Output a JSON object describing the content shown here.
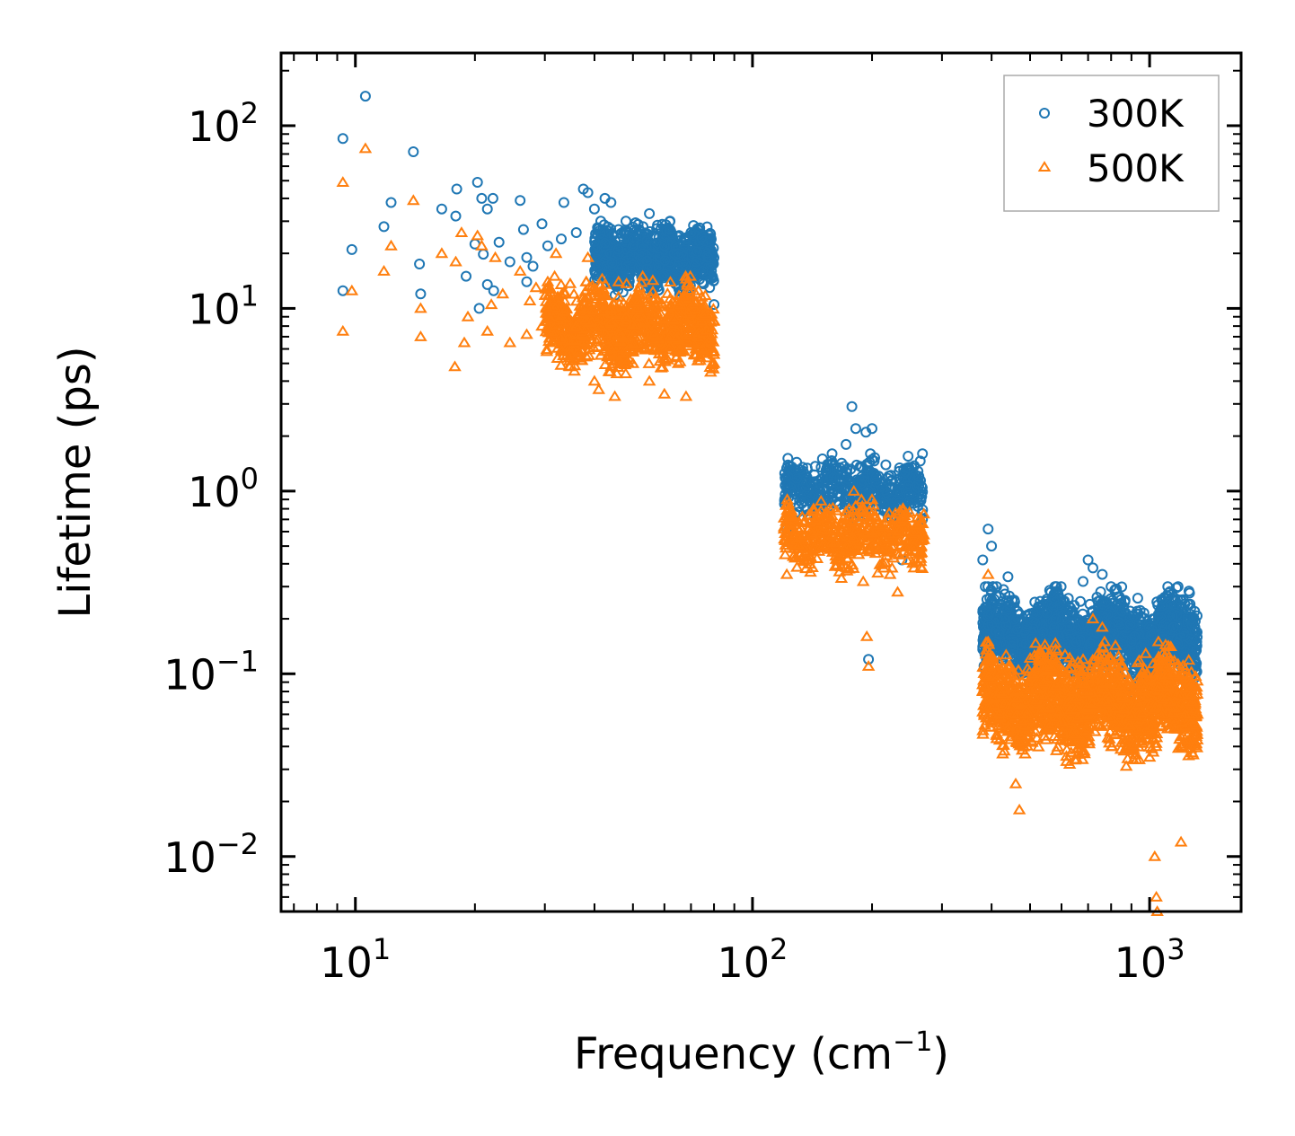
{
  "chart_data": {
    "type": "scatter",
    "xscale": "log",
    "yscale": "log",
    "xlim": [
      6.5,
      1700
    ],
    "ylim": [
      0.005,
      250
    ],
    "xlabel": {
      "base": "Frequency (cm",
      "sup": "−1",
      "tail": ")"
    },
    "ylabel": "Lifetime (ps)",
    "x_ticks": [
      {
        "value": 10,
        "base": "10",
        "exp": "1"
      },
      {
        "value": 100,
        "base": "10",
        "exp": "2"
      },
      {
        "value": 1000,
        "base": "10",
        "exp": "3"
      }
    ],
    "y_ticks": [
      {
        "value": 0.01,
        "base": "10",
        "exp": "−2"
      },
      {
        "value": 0.1,
        "base": "10",
        "exp": "−1"
      },
      {
        "value": 1,
        "base": "10",
        "exp": "0"
      },
      {
        "value": 10,
        "base": "10",
        "exp": "1"
      },
      {
        "value": 100,
        "base": "10",
        "exp": "2"
      }
    ],
    "legend_position": "top-right",
    "series": [
      {
        "name": "300K",
        "marker": "circle",
        "color": "#1f77b4",
        "points": [
          [
            9.3,
            85
          ],
          [
            10.6,
            145
          ],
          [
            14.0,
            72
          ],
          [
            9.3,
            12.5
          ],
          [
            9.8,
            21
          ],
          [
            12.3,
            38
          ],
          [
            11.8,
            28
          ],
          [
            14.5,
            17.5
          ],
          [
            14.6,
            12
          ],
          [
            16.5,
            35
          ],
          [
            18.0,
            45
          ],
          [
            17.9,
            32
          ],
          [
            19.0,
            15
          ],
          [
            20.3,
            49
          ],
          [
            20.8,
            40
          ],
          [
            21.5,
            35
          ],
          [
            22.2,
            40
          ],
          [
            20.0,
            22.5
          ],
          [
            21.0,
            19.8
          ],
          [
            23.0,
            23
          ],
          [
            21.5,
            13.5
          ],
          [
            22.3,
            12.5
          ],
          [
            20.5,
            10
          ],
          [
            24.5,
            18
          ],
          [
            26.0,
            39
          ],
          [
            26.5,
            27
          ],
          [
            27.0,
            19
          ],
          [
            27.0,
            14
          ],
          [
            28.0,
            17
          ],
          [
            29.5,
            29
          ],
          [
            30.5,
            22
          ],
          [
            33.0,
            24
          ],
          [
            33.5,
            38
          ],
          [
            36.0,
            26
          ],
          [
            37.5,
            45
          ],
          [
            38.5,
            43
          ],
          [
            40.0,
            35
          ],
          [
            41.5,
            30
          ],
          [
            42.5,
            40
          ],
          [
            44.0,
            38
          ],
          [
            46.0,
            27
          ],
          [
            48.0,
            30
          ],
          [
            50.0,
            22
          ],
          [
            53.0,
            28
          ],
          [
            55.0,
            33
          ],
          [
            57.0,
            25
          ],
          [
            60.0,
            22
          ],
          [
            62.0,
            27
          ],
          [
            65.0,
            20
          ],
          [
            68.0,
            24
          ],
          [
            70.0,
            26
          ],
          [
            72.0,
            18
          ],
          [
            75.0,
            16
          ],
          [
            78.0,
            13
          ],
          [
            80.0,
            10.5
          ],
          [
            122.0,
            0.62
          ],
          [
            128.0,
            0.75
          ],
          [
            135.0,
            0.88
          ],
          [
            142.0,
            1.05
          ],
          [
            150.0,
            1.5
          ],
          [
            158.0,
            1.1
          ],
          [
            165.0,
            1.3
          ],
          [
            172.0,
            1.8
          ],
          [
            178.0,
            2.9
          ],
          [
            182.0,
            2.2
          ],
          [
            188.0,
            1.1
          ],
          [
            193.0,
            2.1
          ],
          [
            196.0,
            0.12
          ],
          [
            200.0,
            2.2
          ],
          [
            205.0,
            1.2
          ],
          [
            212.0,
            0.72
          ],
          [
            225.0,
            0.6
          ],
          [
            238.0,
            0.42
          ],
          [
            248.0,
            0.95
          ],
          [
            255.0,
            0.55
          ],
          [
            262.0,
            1.2
          ],
          [
            268.0,
            1.6
          ],
          [
            380.0,
            0.42
          ],
          [
            392.0,
            0.62
          ],
          [
            400.0,
            0.5
          ],
          [
            412.0,
            0.3
          ],
          [
            430.0,
            0.2
          ],
          [
            440.0,
            0.34
          ],
          [
            455.0,
            0.15
          ],
          [
            470.0,
            0.12
          ],
          [
            500.0,
            0.1
          ],
          [
            540.0,
            0.17
          ],
          [
            580.0,
            0.2
          ],
          [
            610.0,
            0.25
          ],
          [
            640.0,
            0.22
          ],
          [
            680.0,
            0.32
          ],
          [
            700.0,
            0.42
          ],
          [
            720.0,
            0.38
          ],
          [
            760.0,
            0.35
          ],
          [
            800.0,
            0.3
          ],
          [
            850.0,
            0.22
          ],
          [
            900.0,
            0.15
          ],
          [
            950.0,
            0.14
          ],
          [
            1000.0,
            0.12
          ],
          [
            1050.0,
            0.1
          ],
          [
            1100.0,
            0.14
          ],
          [
            1150.0,
            0.18
          ],
          [
            1200.0,
            0.11
          ],
          [
            1260.0,
            0.1
          ],
          [
            1300.0,
            0.095
          ]
        ],
        "clusters": [
          {
            "x": [
              40,
              80
            ],
            "y": [
              10,
              30
            ],
            "n": 1100
          },
          {
            "x": [
              120,
              270
            ],
            "y": [
              0.55,
              1.6
            ],
            "n": 520
          },
          {
            "x": [
              380,
              1320
            ],
            "y": [
              0.07,
              0.3
            ],
            "n": 1800
          }
        ]
      },
      {
        "name": "500K",
        "marker": "triangle",
        "color": "#ff7f0e",
        "points": [
          [
            9.3,
            49
          ],
          [
            10.6,
            75
          ],
          [
            14.0,
            39
          ],
          [
            9.3,
            7.5
          ],
          [
            9.8,
            12.5
          ],
          [
            11.8,
            16
          ],
          [
            12.3,
            22
          ],
          [
            14.6,
            7
          ],
          [
            14.6,
            10
          ],
          [
            16.5,
            20
          ],
          [
            17.8,
            4.8
          ],
          [
            18.5,
            26
          ],
          [
            17.9,
            18
          ],
          [
            18.8,
            6.5
          ],
          [
            19.2,
            9
          ],
          [
            20.3,
            25
          ],
          [
            20.8,
            22
          ],
          [
            21.5,
            7.5
          ],
          [
            22.0,
            10.5
          ],
          [
            22.5,
            19
          ],
          [
            23.5,
            12
          ],
          [
            24.5,
            6.5
          ],
          [
            26.0,
            16
          ],
          [
            27.0,
            7.2
          ],
          [
            27.5,
            11
          ],
          [
            28.5,
            13
          ],
          [
            29.5,
            8
          ],
          [
            30.5,
            14
          ],
          [
            32.0,
            20
          ],
          [
            34.0,
            10
          ],
          [
            36.0,
            8
          ],
          [
            37.0,
            5.2
          ],
          [
            38.5,
            19
          ],
          [
            40.0,
            4
          ],
          [
            41.0,
            3.6
          ],
          [
            42.5,
            6
          ],
          [
            44.0,
            10
          ],
          [
            45.0,
            3.3
          ],
          [
            46.0,
            14
          ],
          [
            48.0,
            9
          ],
          [
            50.0,
            5
          ],
          [
            52.0,
            12
          ],
          [
            55.0,
            4
          ],
          [
            57.0,
            6
          ],
          [
            60.0,
            3.4
          ],
          [
            62.0,
            7
          ],
          [
            65.0,
            5
          ],
          [
            68.0,
            3.3
          ],
          [
            70.0,
            8
          ],
          [
            72.0,
            12
          ],
          [
            75.0,
            6
          ],
          [
            80.0,
            5
          ],
          [
            122.0,
            0.35
          ],
          [
            128.0,
            0.43
          ],
          [
            135.0,
            0.42
          ],
          [
            140.0,
            0.36
          ],
          [
            150.0,
            0.5
          ],
          [
            160.0,
            0.62
          ],
          [
            168.0,
            0.55
          ],
          [
            175.0,
            0.8
          ],
          [
            180.0,
            1.0
          ],
          [
            185.0,
            0.45
          ],
          [
            190.0,
            0.32
          ],
          [
            194.0,
            0.16
          ],
          [
            196.0,
            0.11
          ],
          [
            200.0,
            0.9
          ],
          [
            210.0,
            0.65
          ],
          [
            222.0,
            0.35
          ],
          [
            232.0,
            0.28
          ],
          [
            245.0,
            0.45
          ],
          [
            255.0,
            0.38
          ],
          [
            265.0,
            0.55
          ],
          [
            270.0,
            0.75
          ],
          [
            380.0,
            0.08
          ],
          [
            392.0,
            0.35
          ],
          [
            400.0,
            0.12
          ],
          [
            420.0,
            0.08
          ],
          [
            440.0,
            0.05
          ],
          [
            460.0,
            0.025
          ],
          [
            470.0,
            0.018
          ],
          [
            490.0,
            0.06
          ],
          [
            520.0,
            0.055
          ],
          [
            560.0,
            0.065
          ],
          [
            600.0,
            0.055
          ],
          [
            640.0,
            0.08
          ],
          [
            680.0,
            0.12
          ],
          [
            720.0,
            0.2
          ],
          [
            760.0,
            0.18
          ],
          [
            800.0,
            0.12
          ],
          [
            850.0,
            0.08
          ],
          [
            900.0,
            0.06
          ],
          [
            950.0,
            0.045
          ],
          [
            1000.0,
            0.035
          ],
          [
            1030.0,
            0.01
          ],
          [
            1040.0,
            0.006
          ],
          [
            1045.0,
            0.005
          ],
          [
            1080.0,
            0.06
          ],
          [
            1120.0,
            0.07
          ],
          [
            1160.0,
            0.05
          ],
          [
            1200.0,
            0.012
          ],
          [
            1230.0,
            0.06
          ],
          [
            1280.0,
            0.07
          ],
          [
            1320.0,
            0.06
          ]
        ],
        "clusters": [
          {
            "x": [
              30,
              80
            ],
            "y": [
              3.5,
              15
            ],
            "n": 1100
          },
          {
            "x": [
              120,
              270
            ],
            "y": [
              0.3,
              0.9
            ],
            "n": 520
          },
          {
            "x": [
              380,
              1320
            ],
            "y": [
              0.025,
              0.15
            ],
            "n": 1800
          }
        ]
      }
    ]
  }
}
